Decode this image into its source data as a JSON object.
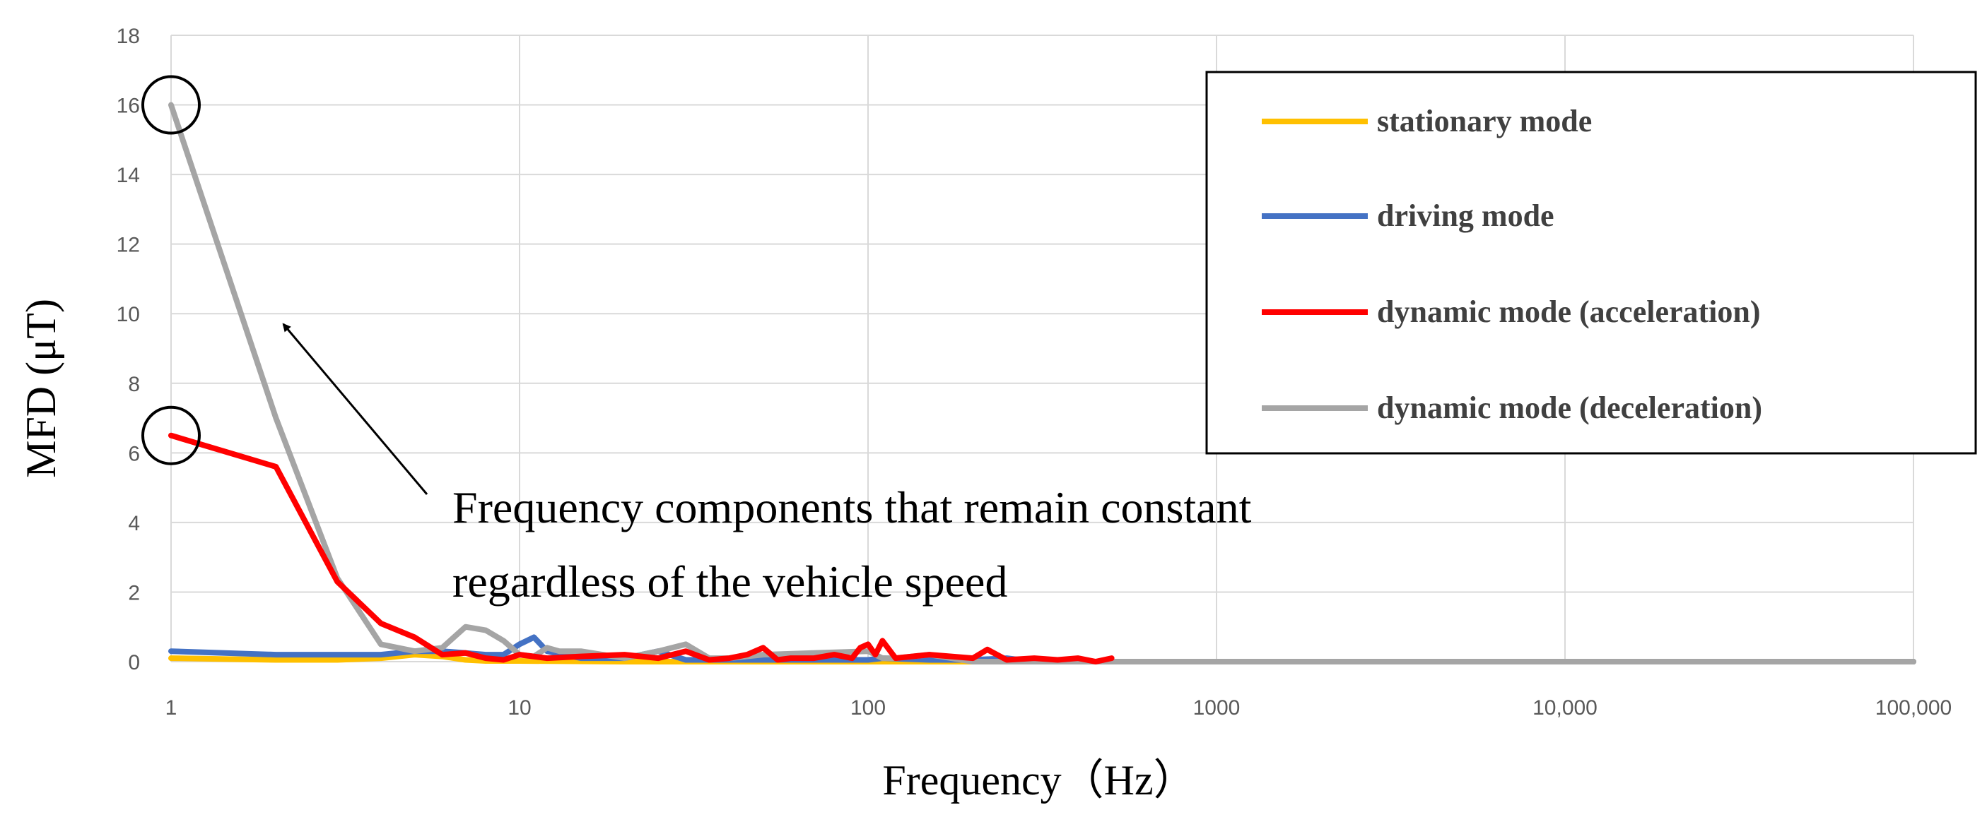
{
  "chart_data": {
    "type": "line",
    "x_scale": "log",
    "xlabel": "Frequency（Hz）",
    "ylabel": "MFD (μT)",
    "xlim": [
      1,
      100000
    ],
    "ylim": [
      0,
      18
    ],
    "x_ticks": [
      {
        "value": 1,
        "label": "1"
      },
      {
        "value": 10,
        "label": "10"
      },
      {
        "value": 100,
        "label": "100"
      },
      {
        "value": 1000,
        "label": "1000"
      },
      {
        "value": 10000,
        "label": "10,000"
      },
      {
        "value": 100000,
        "label": "100,000"
      }
    ],
    "y_ticks": [
      {
        "value": 0,
        "label": "0"
      },
      {
        "value": 2,
        "label": "2"
      },
      {
        "value": 4,
        "label": "4"
      },
      {
        "value": 6,
        "label": "6"
      },
      {
        "value": 8,
        "label": "8"
      },
      {
        "value": 10,
        "label": "10"
      },
      {
        "value": 12,
        "label": "12"
      },
      {
        "value": 14,
        "label": "14"
      },
      {
        "value": 16,
        "label": "16"
      },
      {
        "value": 18,
        "label": "18"
      }
    ],
    "grid": true,
    "legend_position": "top-right",
    "series": [
      {
        "name": "stationary mode",
        "color": "#FFC000",
        "x": [
          1,
          2,
          3,
          4,
          5,
          6,
          7,
          8,
          9,
          10,
          20,
          50,
          100,
          1000,
          10000,
          100000
        ],
        "y": [
          0.1,
          0.05,
          0.05,
          0.1,
          0.2,
          0.15,
          0.05,
          0.02,
          0.02,
          0.02,
          0,
          0,
          0,
          0,
          0,
          0
        ]
      },
      {
        "name": "driving mode",
        "color": "#4472C4",
        "x": [
          1,
          2,
          3,
          4,
          5,
          6,
          7,
          8,
          9,
          10,
          11,
          12,
          15,
          20,
          25,
          30,
          50,
          100,
          110,
          150,
          200,
          250,
          300,
          1000,
          10000,
          100000
        ],
        "y": [
          0.3,
          0.2,
          0.2,
          0.2,
          0.3,
          0.3,
          0.25,
          0.2,
          0.2,
          0.5,
          0.7,
          0.3,
          0.1,
          0.1,
          0.3,
          0.05,
          0.05,
          0.05,
          0.1,
          0.05,
          0.05,
          0.1,
          0,
          0,
          0,
          0
        ]
      },
      {
        "name": "dynamic mode (acceleration)",
        "color": "#FF0000",
        "x": [
          1,
          2,
          3,
          4,
          5,
          6,
          7,
          8,
          9,
          10,
          12,
          15,
          20,
          25,
          30,
          35,
          40,
          45,
          50,
          55,
          60,
          70,
          80,
          90,
          95,
          100,
          105,
          110,
          120,
          150,
          200,
          220,
          250,
          300,
          350,
          400,
          450,
          500
        ],
        "y": [
          6.5,
          5.6,
          2.3,
          1.1,
          0.7,
          0.2,
          0.25,
          0.1,
          0.05,
          0.2,
          0.1,
          0.15,
          0.2,
          0.1,
          0.3,
          0.05,
          0.1,
          0.2,
          0.4,
          0.05,
          0.1,
          0.1,
          0.2,
          0.1,
          0.4,
          0.5,
          0.2,
          0.6,
          0.1,
          0.2,
          0.1,
          0.35,
          0.05,
          0.1,
          0.05,
          0.1,
          0,
          0.1
        ]
      },
      {
        "name": "dynamic mode (deceleration)",
        "color": "#A5A5A5",
        "x": [
          1,
          2,
          3,
          4,
          5,
          6,
          7,
          8,
          9,
          10,
          11,
          12,
          13,
          15,
          20,
          25,
          30,
          35,
          40,
          50,
          100,
          110,
          120,
          150,
          200,
          1000,
          10000,
          100000
        ],
        "y": [
          16,
          7,
          2.4,
          0.5,
          0.3,
          0.4,
          1.0,
          0.9,
          0.6,
          0.2,
          0.15,
          0.4,
          0.3,
          0.3,
          0.1,
          0.3,
          0.5,
          0.1,
          0.1,
          0.2,
          0.3,
          0.1,
          0.1,
          0.2,
          0,
          0,
          0,
          0
        ]
      }
    ],
    "annotations": {
      "text_lines": [
        "Frequency components that remain constant",
        "regardless of the vehicle speed"
      ],
      "circled_points": [
        {
          "x": 1,
          "y": 16
        },
        {
          "x": 1,
          "y": 6.5
        }
      ],
      "arrow_to": {
        "x": 2.1,
        "y": 9.7
      }
    }
  }
}
